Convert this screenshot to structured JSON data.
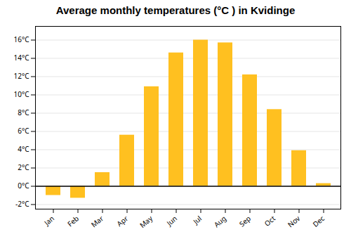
{
  "chart_data": {
    "type": "bar",
    "title": "Average monthly temperatures (°C ) in Kvidinge",
    "categories": [
      "Jan",
      "Feb",
      "Mar",
      "Apr",
      "May",
      "Jun",
      "Jul",
      "Aug",
      "Sep",
      "Oct",
      "Nov",
      "Dec"
    ],
    "values": [
      -1.0,
      -1.3,
      1.5,
      5.6,
      10.9,
      14.6,
      16.0,
      15.7,
      12.2,
      8.4,
      3.9,
      0.3
    ],
    "color": "#FFC020",
    "ylim": [
      -2.5,
      17.5
    ],
    "yticks": [
      {
        "value": -2,
        "label": "-2°C"
      },
      {
        "value": 0,
        "label": "0°C"
      },
      {
        "value": 2,
        "label": "2°C"
      },
      {
        "value": 4,
        "label": "4°C"
      },
      {
        "value": 6,
        "label": "6°C"
      },
      {
        "value": 8,
        "label": "8°C"
      },
      {
        "value": 10,
        "label": "10°C"
      },
      {
        "value": 12,
        "label": "12°C"
      },
      {
        "value": 14,
        "label": "14°C"
      },
      {
        "value": 16,
        "label": "16°C"
      }
    ],
    "grid": true
  }
}
